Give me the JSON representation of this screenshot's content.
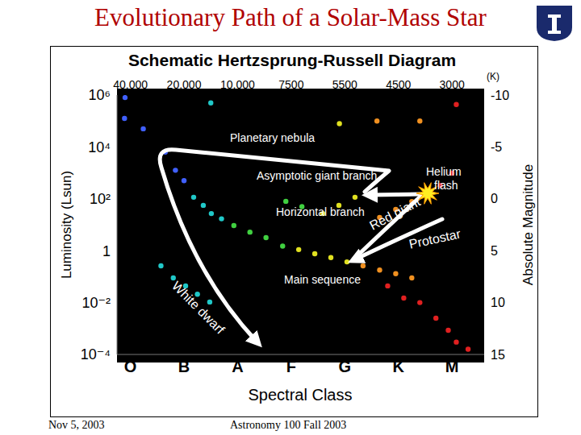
{
  "slide": {
    "title": "Evolutionary Path of a Solar-Mass Star",
    "footer_left": "Nov 5, 2003",
    "footer_center": "Astronomy 100 Fall 2003"
  },
  "chart_data": {
    "type": "scatter",
    "title": "Schematic Hertzsprung-Russell Diagram",
    "x_label": "Spectral Class",
    "y_label": "Luminosity (Lsun)",
    "y2_label": "Absolute Magnitude",
    "log": "y",
    "grid": false,
    "xlim": [
      -0.25,
      6.6
    ],
    "xticks": [
      {
        "value": 0,
        "label": "O"
      },
      {
        "value": 1,
        "label": "B"
      },
      {
        "value": 2,
        "label": "A"
      },
      {
        "value": 3,
        "label": "F"
      },
      {
        "value": 4,
        "label": "G"
      },
      {
        "value": 5,
        "label": "K"
      },
      {
        "value": 6,
        "label": "M"
      }
    ],
    "ylim": [
      0.0001,
      1000000
    ],
    "yticks": [
      {
        "value": 1000000,
        "label": "10⁶"
      },
      {
        "value": 10000,
        "label": "10⁴"
      },
      {
        "value": 100,
        "label": "10²"
      },
      1,
      {
        "value": 0.01,
        "label": "10⁻²"
      },
      {
        "value": 0.0001,
        "label": "10⁻⁴"
      }
    ],
    "y2lim": [
      15,
      -10
    ],
    "y2ticks": [
      -10,
      -5,
      0,
      5,
      10,
      15
    ],
    "temperature_labels": [
      "40,000",
      "20,000",
      "10,000",
      "7500",
      "5500",
      "4500",
      "3000"
    ],
    "temperature_unit": "(K)",
    "series": [
      {
        "color": "#4060ff",
        "marker": "circle",
        "x": [
          -0.1,
          -0.11,
          0.24,
          0.65,
          0.84,
          1.0
        ],
        "values": [
          800000,
          126000,
          50000,
          6300,
          1260,
          500
        ]
      },
      {
        "color": "#20c8c8",
        "marker": "circle",
        "x": [
          1.18,
          1.36,
          1.51,
          1.7,
          1.5,
          0.57,
          0.8,
          1.03,
          1.25,
          1.48
        ],
        "values": [
          115,
          56,
          27,
          17,
          500000,
          0.26,
          0.089,
          0.044,
          0.021,
          0.0105
        ]
      },
      {
        "color": "#40d040",
        "marker": "circle",
        "x": [
          1.93,
          2.23,
          2.53,
          2.84,
          2.9,
          3.2
        ],
        "values": [
          9.3,
          5.2,
          3.2,
          1.5,
          80,
          50
        ]
      },
      {
        "color": "#e0e020",
        "marker": "circle",
        "x": [
          3.14,
          3.44,
          3.74,
          4.04,
          3.59,
          3.89,
          4.19,
          3.9
        ],
        "values": [
          1.1,
          0.76,
          0.54,
          0.37,
          27,
          56,
          115,
          79000
        ]
      },
      {
        "color": "#f09020",
        "marker": "circle",
        "x": [
          4.34,
          4.65,
          4.95,
          5.25,
          4.65,
          4.95,
          5.25,
          4.6,
          5.4
        ],
        "values": [
          0.26,
          0.18,
          0.13,
          0.089,
          19,
          39,
          79,
          100000,
          100000
        ]
      },
      {
        "color": "#e02020",
        "marker": "circle",
        "x": [
          5.55,
          5.78,
          6.0,
          4.8,
          5.1,
          5.4,
          5.7,
          5.93,
          6.08,
          6.3,
          6.08
        ],
        "values": [
          160,
          330,
          980,
          0.044,
          0.015,
          0.01,
          0.0025,
          0.00085,
          0.0003,
          0.00016,
          430000
        ]
      }
    ],
    "annotations": [
      "Planetary nebula",
      "Asymptotic giant branch",
      "Helium flash",
      "Horizontal branch",
      "Red giant",
      "Protostar",
      "Main sequence",
      "White dwarf"
    ]
  }
}
